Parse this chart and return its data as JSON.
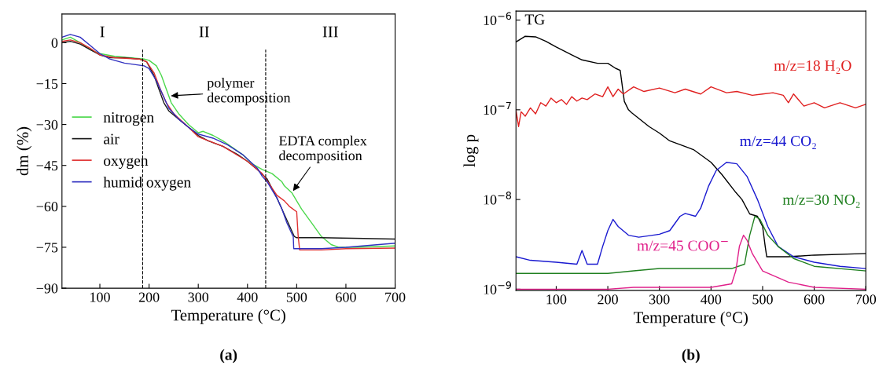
{
  "chart_data": [
    {
      "type": "line",
      "xlabel": "Temperature (°C)",
      "ylabel": "dm (%)",
      "xlim": [
        23,
        700
      ],
      "ylim": [
        -90,
        10.5
      ],
      "xticks": [
        100,
        200,
        300,
        400,
        500,
        600,
        700
      ],
      "yticks": [
        {
          "value": 0,
          "label": "0"
        },
        {
          "value": -15,
          "label": "−15"
        },
        {
          "value": -30,
          "label": "−30"
        },
        {
          "value": -45,
          "label": "−45"
        },
        {
          "value": -60,
          "label": "−60"
        },
        {
          "value": -75,
          "label": "−75"
        },
        {
          "value": -90,
          "label": "−90"
        }
      ],
      "legend": "left",
      "grid": false,
      "marker": "none",
      "line_style": "solid",
      "series": [
        {
          "name": "nitrogen",
          "color": "#4cd84c",
          "x": [
            23,
            40,
            60,
            80,
            100,
            130,
            160,
            190,
            200,
            215,
            225,
            235,
            245,
            260,
            280,
            300,
            310,
            330,
            350,
            370,
            390,
            410,
            430,
            450,
            470,
            475,
            490,
            510,
            530,
            550,
            570,
            585,
            620,
            700
          ],
          "values": [
            1,
            2,
            0,
            -2.5,
            -4,
            -5,
            -5.5,
            -6,
            -6.5,
            -8.5,
            -12,
            -17,
            -22,
            -26,
            -30,
            -33,
            -32.5,
            -34,
            -36,
            -38.5,
            -41,
            -44.5,
            -46.5,
            -48,
            -51,
            -52.5,
            -55,
            -61,
            -66,
            -71,
            -74,
            -75,
            -75,
            -74.5
          ]
        },
        {
          "name": "air",
          "color": "#1a1a1a",
          "x": [
            23,
            40,
            60,
            80,
            100,
            120,
            150,
            180,
            195,
            210,
            220,
            230,
            240,
            260,
            280,
            300,
            320,
            350,
            380,
            400,
            420,
            440,
            460,
            480,
            495,
            500,
            550,
            700
          ],
          "values": [
            0,
            0.5,
            -0.5,
            -2.5,
            -4.5,
            -5.5,
            -5.5,
            -6,
            -7,
            -12,
            -17,
            -22,
            -25,
            -28,
            -31,
            -34,
            -36,
            -38,
            -41,
            -43.5,
            -46.5,
            -50,
            -57,
            -65,
            -71,
            -71.5,
            -71.5,
            -72
          ]
        },
        {
          "name": "oxygen",
          "color": "#e03030",
          "x": [
            23,
            40,
            60,
            80,
            100,
            130,
            180,
            195,
            210,
            225,
            235,
            250,
            280,
            300,
            350,
            400,
            430,
            445,
            460,
            475,
            485,
            500,
            503,
            506,
            550,
            600,
            700
          ],
          "values": [
            0.5,
            1,
            0,
            -2,
            -4.5,
            -5.5,
            -6,
            -7,
            -11,
            -18,
            -22,
            -26,
            -31,
            -34.5,
            -38,
            -43.5,
            -48,
            -52,
            -56,
            -58,
            -60,
            -62,
            -71,
            -76,
            -76,
            -75.5,
            -75.3
          ]
        },
        {
          "name": "humid oxygen",
          "color": "#3030c0",
          "x": [
            23,
            40,
            60,
            80,
            100,
            120,
            150,
            190,
            200,
            215,
            230,
            240,
            260,
            280,
            300,
            330,
            360,
            390,
            420,
            430,
            440,
            460,
            470,
            480,
            490,
            493,
            494,
            550,
            600,
            700
          ],
          "values": [
            2,
            3,
            2,
            -1,
            -4,
            -6,
            -7.5,
            -8.5,
            -9.5,
            -14,
            -20,
            -24,
            -28,
            -31,
            -33.5,
            -35,
            -37.5,
            -41,
            -46,
            -49,
            -51,
            -57,
            -61,
            -66,
            -70,
            -71,
            -75.5,
            -75.5,
            -75,
            -73.5
          ]
        }
      ],
      "ref_lines": [
        {
          "axis": "x",
          "value": 187,
          "color": "#000000",
          "line_style": "dashed"
        },
        {
          "axis": "x",
          "value": 437,
          "color": "#000000",
          "line_style": "dashed"
        }
      ],
      "annotations": [
        "I",
        "II",
        "III",
        {
          "text": "polymer\ndecomposition",
          "x": 240,
          "y": -19.5
        },
        {
          "text": "EDTA complex\ndecomposition",
          "x": 490,
          "y": -55
        },
        "(a)"
      ]
    },
    {
      "type": "line",
      "xlabel": "Temperature (°C)",
      "ylabel": "log p",
      "log": true,
      "xlim": [
        22,
        700
      ],
      "ylim": [
        9.7e-10,
        1.26e-06
      ],
      "xticks": [
        100,
        200,
        300,
        400,
        500,
        600,
        700
      ],
      "yticks": [
        {
          "value": 1e-09,
          "label": "10$^{−9}$"
        },
        {
          "value": 1e-08,
          "label": "10$^{−8}$"
        },
        {
          "value": 1e-07,
          "label": "10$^{−7}$"
        },
        {
          "value": 1e-06,
          "label": "10$^{−6}$"
        }
      ],
      "legend": false,
      "grid": false,
      "marker": "none",
      "line_style": "solid",
      "series": [
        {
          "name": "TG",
          "color": "#000000",
          "x": [
            22,
            40,
            60,
            80,
            100,
            130,
            150,
            180,
            200,
            215,
            224,
            232,
            240,
            246,
            280,
            300,
            320,
            350,
            366,
            400,
            421,
            448,
            460,
            475,
            490,
            500,
            505,
            508,
            550,
            600,
            700
          ],
          "values": [
            5.7e-07,
            6.6e-07,
            6.5e-07,
            5.8e-07,
            5e-07,
            4.1e-07,
            3.6e-07,
            3.3e-07,
            3.3e-07,
            2.9e-07,
            2.75e-07,
            1.24e-07,
            1e-07,
            9.3e-08,
            6.5e-08,
            5.5e-08,
            4.5e-08,
            3.9e-08,
            3.6e-08,
            2.6e-08,
            1.9e-08,
            1.2e-08,
            1e-08,
            6.9e-09,
            6.5e-09,
            5e-09,
            3e-09,
            2.3e-09,
            2.3e-09,
            2.4e-09,
            2.5e-09
          ]
        },
        {
          "name": "m/z=18 H₂O",
          "color": "#e02020",
          "x": [
            22,
            27,
            32,
            40,
            50,
            60,
            70,
            80,
            90,
            100,
            110,
            120,
            130,
            140,
            150,
            160,
            175,
            190,
            200,
            210,
            220,
            230,
            250,
            270,
            300,
            330,
            350,
            380,
            400,
            430,
            450,
            480,
            500,
            520,
            540,
            550,
            560,
            580,
            600,
            620,
            650,
            680,
            700
          ],
          "values": [
            1e-07,
            6.5e-08,
            9.5e-08,
            8.5e-08,
            1.05e-07,
            9e-08,
            1.2e-07,
            1.1e-07,
            1.35e-07,
            1.2e-07,
            1.3e-07,
            1.15e-07,
            1.4e-07,
            1.25e-07,
            1.35e-07,
            1.3e-07,
            1.5e-07,
            1.4e-07,
            1.8e-07,
            1.4e-07,
            1.7e-07,
            1.5e-07,
            1.8e-07,
            1.6e-07,
            1.75e-07,
            1.55e-07,
            1.7e-07,
            1.5e-07,
            1.8e-07,
            1.55e-07,
            1.6e-07,
            1.45e-07,
            1.5e-07,
            1.55e-07,
            1.45e-07,
            1.2e-07,
            1.5e-07,
            1.1e-07,
            1.2e-07,
            1.05e-07,
            1.2e-07,
            1.05e-07,
            1.15e-07
          ]
        },
        {
          "name": "m/z=44 CO₂",
          "color": "#1a1ad0",
          "x": [
            22,
            50,
            100,
            140,
            150,
            160,
            180,
            190,
            200,
            210,
            220,
            240,
            260,
            300,
            320,
            340,
            350,
            370,
            380,
            395,
            410,
            430,
            450,
            470,
            490,
            510,
            530,
            560,
            600,
            650,
            700
          ],
          "values": [
            2.3e-09,
            2.1e-09,
            2e-09,
            1.9e-09,
            2.7e-09,
            1.9e-09,
            1.9e-09,
            3e-09,
            4.5e-09,
            6e-09,
            5e-09,
            4e-09,
            3.8e-09,
            4.1e-09,
            4.5e-09,
            6.5e-09,
            7e-09,
            6.5e-09,
            8e-09,
            1.4e-08,
            2.1e-08,
            2.6e-08,
            2.5e-08,
            1.8e-08,
            1e-08,
            5e-09,
            3e-09,
            2.3e-09,
            2e-09,
            1.8e-09,
            1.7e-09
          ]
        },
        {
          "name": "m/z=30 NO₂",
          "color": "#208020",
          "x": [
            22,
            100,
            200,
            250,
            300,
            400,
            440,
            465,
            475,
            485,
            495,
            510,
            530,
            560,
            600,
            700
          ],
          "values": [
            1.5e-09,
            1.5e-09,
            1.5e-09,
            1.6e-09,
            1.7e-09,
            1.7e-09,
            1.7e-09,
            1.9e-09,
            4e-09,
            6.5e-09,
            6e-09,
            4e-09,
            3e-09,
            2.2e-09,
            1.8e-09,
            1.6e-09
          ]
        },
        {
          "name": "m/z=45 COO$^{−}$",
          "color": "#e0208a",
          "x": [
            22,
            200,
            250,
            400,
            440,
            448,
            455,
            463,
            470,
            480,
            500,
            550,
            600,
            700
          ],
          "values": [
            1e-09,
            1e-09,
            1.05e-09,
            1.05e-09,
            1.15e-09,
            1.6e-09,
            3e-09,
            4e-09,
            3.5e-09,
            2.5e-09,
            1.6e-09,
            1.2e-09,
            1.05e-09,
            1e-09
          ]
        }
      ],
      "annotations": [
        "(b)"
      ]
    }
  ]
}
